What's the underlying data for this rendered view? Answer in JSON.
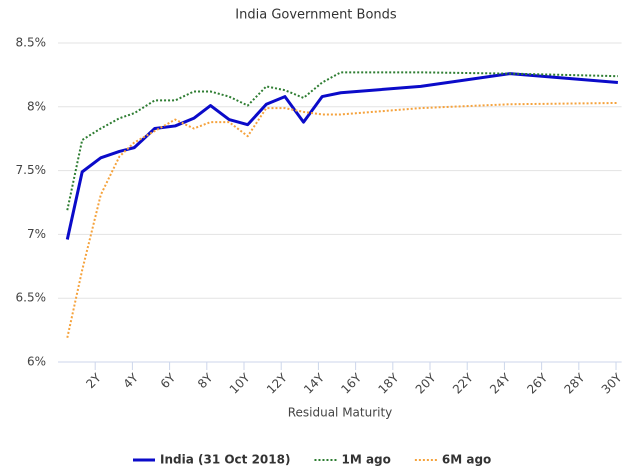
{
  "chart_data": {
    "type": "line",
    "title": "India Government Bonds",
    "x_label": "Residual Maturity",
    "x": [
      0.5,
      1.3,
      2.3,
      3.3,
      4.1,
      5.2,
      6.3,
      7.3,
      8.2,
      9.2,
      10.2,
      11.2,
      12.2,
      13.2,
      14.2,
      15.2,
      19.5,
      24.3,
      30.1
    ],
    "series": [
      {
        "name": "India (31 Oct 2018)",
        "color": "#0b0bc9",
        "style": "solid",
        "values": [
          6.96,
          7.49,
          7.6,
          7.65,
          7.68,
          7.83,
          7.85,
          7.91,
          8.01,
          7.9,
          7.86,
          8.02,
          8.08,
          7.88,
          8.08,
          8.11,
          8.16,
          8.26,
          8.19
        ]
      },
      {
        "name": "1M ago",
        "color": "#2e7d32",
        "style": "dotted",
        "values": [
          7.19,
          7.74,
          7.83,
          7.91,
          7.95,
          8.05,
          8.05,
          8.12,
          8.12,
          8.08,
          8.01,
          8.16,
          8.13,
          8.07,
          8.19,
          8.27,
          8.27,
          8.26,
          8.24
        ]
      },
      {
        "name": "6M ago",
        "color": "#f5a23c",
        "style": "dotted",
        "values": [
          6.19,
          6.72,
          7.31,
          7.61,
          7.72,
          7.81,
          7.9,
          7.83,
          7.88,
          7.88,
          7.77,
          7.99,
          7.99,
          7.96,
          7.94,
          7.94,
          7.99,
          8.02,
          8.03
        ]
      }
    ],
    "xlim": [
      0,
      30.3
    ],
    "xticks": [
      {
        "value": 2,
        "label": "2Y"
      },
      {
        "value": 4,
        "label": "4Y"
      },
      {
        "value": 6,
        "label": "6Y"
      },
      {
        "value": 8,
        "label": "8Y"
      },
      {
        "value": 10,
        "label": "10Y"
      },
      {
        "value": 12,
        "label": "12Y"
      },
      {
        "value": 14,
        "label": "14Y"
      },
      {
        "value": 16,
        "label": "16Y"
      },
      {
        "value": 18,
        "label": "18Y"
      },
      {
        "value": 20,
        "label": "20Y"
      },
      {
        "value": 22,
        "label": "22Y"
      },
      {
        "value": 24,
        "label": "24Y"
      },
      {
        "value": 26,
        "label": "26Y"
      },
      {
        "value": 28,
        "label": "28Y"
      },
      {
        "value": 30,
        "label": "30Y"
      }
    ],
    "ylim": [
      6,
      8.5
    ],
    "yticks": [
      {
        "value": 6,
        "label": "6%"
      },
      {
        "value": 6.5,
        "label": "6.5%"
      },
      {
        "value": 7,
        "label": "7%"
      },
      {
        "value": 7.5,
        "label": "7.5%"
      },
      {
        "value": 8,
        "label": "8%"
      },
      {
        "value": 8.5,
        "label": "8.5%"
      }
    ],
    "grid": true,
    "legend": "bottom"
  }
}
